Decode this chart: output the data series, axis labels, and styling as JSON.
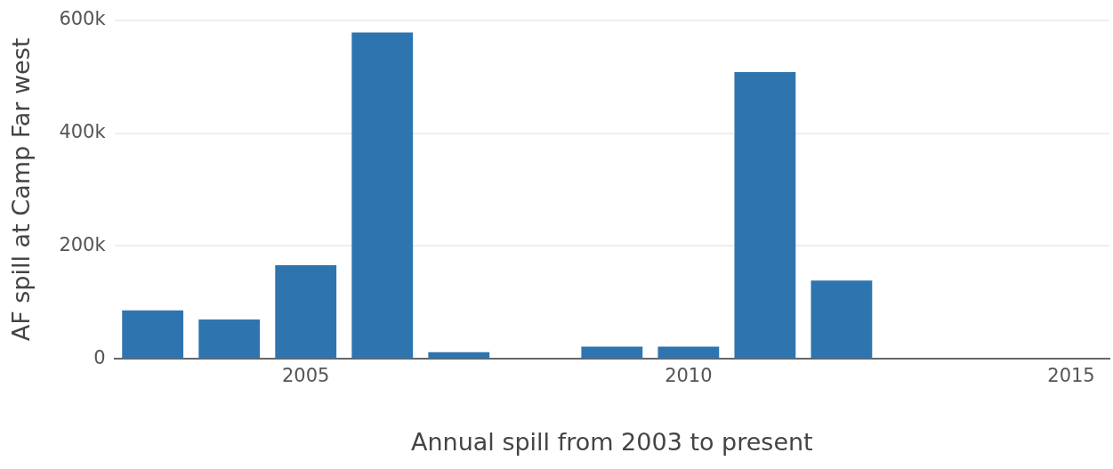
{
  "chart_data": {
    "type": "bar",
    "xlabel": "Annual spill from 2003 to present",
    "ylabel": "AF spill at Camp Far west",
    "x": [
      2003,
      2004,
      2005,
      2006,
      2007,
      2008,
      2009,
      2010,
      2011,
      2012
    ],
    "values": [
      86000,
      70000,
      166000,
      578000,
      12000,
      0,
      22000,
      22000,
      508000,
      139000
    ],
    "color": "#2e75b0",
    "xlim": [
      2002.5,
      2015.5
    ],
    "xticks": [
      2005,
      2010,
      2015
    ],
    "ylim": [
      0,
      600000
    ],
    "yticks": [
      0,
      {
        "value": 200000,
        "label": "200k"
      },
      {
        "value": 400000,
        "label": "400k"
      },
      {
        "value": 600000,
        "label": "600k"
      }
    ],
    "grid": "y",
    "legend": false
  }
}
